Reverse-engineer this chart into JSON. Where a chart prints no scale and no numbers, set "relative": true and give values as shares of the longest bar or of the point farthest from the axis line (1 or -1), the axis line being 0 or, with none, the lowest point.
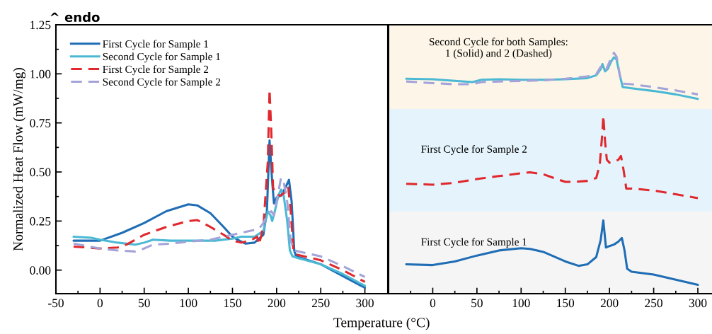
{
  "chart_data": [
    {
      "type": "line",
      "title": "^ endo",
      "xlabel": "Temperature (°C)",
      "ylabel": "Normalized Heat Flow (mW/mg)",
      "xlim": [
        -50,
        326
      ],
      "xticks": [
        -50,
        {
          "value": -25,
          "label": null
        },
        0,
        {
          "value": 25,
          "label": null
        },
        50,
        {
          "value": 75,
          "label": null
        },
        100,
        {
          "value": 125,
          "label": null
        },
        150,
        {
          "value": 175,
          "label": null
        },
        200,
        {
          "value": 225,
          "label": null
        },
        250,
        {
          "value": 275,
          "label": null
        },
        300
      ],
      "ylim": [
        -0.12,
        1.25
      ],
      "yticks": [
        {
          "value": 0,
          "label": "0.00"
        },
        {
          "value": 0.125,
          "label": null
        },
        {
          "value": 0.25,
          "label": "0.25"
        },
        {
          "value": 0.375,
          "label": null
        },
        {
          "value": 0.5,
          "label": "0.50"
        },
        {
          "value": 0.625,
          "label": null
        },
        {
          "value": 0.75,
          "label": "0.75"
        },
        {
          "value": 0.875,
          "label": null
        },
        {
          "value": 1,
          "label": "1.00"
        },
        {
          "value": 1.125,
          "label": null
        },
        {
          "value": 1.25,
          "label": "1.25"
        }
      ],
      "legend": "top left",
      "grid": false,
      "series": [
        {
          "name": "First Cycle for Sample 1",
          "color": "#1f6db5",
          "line_style": "solid",
          "x": [
            -30,
            0,
            25,
            50,
            75,
            100,
            110,
            125,
            140,
            150,
            160,
            165,
            175,
            185,
            189,
            192,
            195,
            197,
            200,
            205,
            210,
            214,
            217,
            220,
            222,
            250,
            275,
            300
          ],
          "values": [
            0.15,
            0.15,
            0.19,
            0.24,
            0.3,
            0.335,
            0.33,
            0.29,
            0.22,
            0.17,
            0.145,
            0.135,
            0.14,
            0.18,
            0.3,
            0.66,
            0.45,
            0.34,
            0.37,
            0.38,
            0.42,
            0.46,
            0.35,
            0.1,
            0.07,
            0.03,
            -0.03,
            -0.09
          ]
        },
        {
          "name": "Second Cycle for Sample 1",
          "color": "#4bb8d4",
          "line_style": "solid",
          "x": [
            -30,
            -10,
            0,
            20,
            40,
            50,
            60,
            80,
            100,
            130,
            150,
            160,
            175,
            185,
            190,
            193,
            195,
            198,
            202,
            205,
            208,
            212,
            215,
            218,
            225,
            250,
            275,
            300
          ],
          "values": [
            0.17,
            0.165,
            0.155,
            0.14,
            0.13,
            0.14,
            0.155,
            0.15,
            0.15,
            0.15,
            0.16,
            0.17,
            0.17,
            0.2,
            0.3,
            0.28,
            0.25,
            0.3,
            0.38,
            0.41,
            0.38,
            0.25,
            0.1,
            0.07,
            0.06,
            0.03,
            -0.02,
            -0.08
          ]
        },
        {
          "name": "First Cycle for Sample 2",
          "color": "#e0282e",
          "line_style": "dashed",
          "x": [
            -30,
            0,
            20,
            30,
            50,
            75,
            100,
            110,
            125,
            140,
            150,
            160,
            170,
            178,
            180,
            185,
            190,
            192,
            194,
            196,
            200,
            205,
            210,
            213,
            216,
            219,
            222,
            250,
            275,
            300
          ],
          "values": [
            0.12,
            0.11,
            0.115,
            0.13,
            0.18,
            0.22,
            0.25,
            0.255,
            0.22,
            0.18,
            0.15,
            0.14,
            0.15,
            0.17,
            0.13,
            0.22,
            0.55,
            0.92,
            0.7,
            0.42,
            0.38,
            0.38,
            0.4,
            0.43,
            0.3,
            0.1,
            0.08,
            0.05,
            0.0,
            -0.06
          ]
        },
        {
          "name": "Second Cycle for Sample 2",
          "color": "#a3a3d9",
          "line_style": "dashed",
          "x": [
            -30,
            0,
            20,
            40,
            50,
            60,
            80,
            100,
            125,
            150,
            170,
            180,
            185,
            190,
            194,
            197,
            200,
            205,
            208,
            212,
            216,
            220,
            250,
            275,
            300
          ],
          "values": [
            0.135,
            0.11,
            0.1,
            0.095,
            0.11,
            0.13,
            0.135,
            0.145,
            0.155,
            0.18,
            0.2,
            0.21,
            0.24,
            0.29,
            0.3,
            0.28,
            0.35,
            0.47,
            0.45,
            0.35,
            0.15,
            0.1,
            0.07,
            0.02,
            -0.035
          ]
        }
      ]
    },
    {
      "type": "line",
      "relative": true,
      "tick_labels": false,
      "xlim": [
        -50,
        316
      ],
      "annotations": [
        "Second Cycle for both Samples:\n1 (Solid) and 2 (Dashed)"
      ],
      "bands": [
        {
          "axis": "y",
          "from": 0,
          "to": 1.5,
          "color": "#fdf6e8"
        }
      ],
      "series": [
        {
          "color": "#4bb8d4",
          "line_style": "solid",
          "x": [
            -30,
            0,
            25,
            45,
            55,
            75,
            100,
            125,
            150,
            175,
            185,
            190,
            192,
            195,
            198,
            202,
            205,
            208,
            212,
            215,
            225,
            250,
            275,
            300
          ],
          "values": [
            0.54,
            0.53,
            0.5,
            0.48,
            0.52,
            0.53,
            0.52,
            0.52,
            0.53,
            0.55,
            0.6,
            0.71,
            0.8,
            0.67,
            0.71,
            0.85,
            0.92,
            0.88,
            0.58,
            0.39,
            0.37,
            0.32,
            0.26,
            0.18
          ]
        },
        {
          "color": "#a3a3d9",
          "line_style": "dashed",
          "x": [
            -30,
            0,
            25,
            45,
            55,
            75,
            100,
            125,
            150,
            175,
            185,
            190,
            193,
            196,
            200,
            205,
            208,
            212,
            215,
            225,
            250,
            275,
            300
          ],
          "values": [
            0.49,
            0.46,
            0.44,
            0.44,
            0.48,
            0.49,
            0.5,
            0.51,
            0.54,
            0.58,
            0.62,
            0.75,
            0.77,
            0.69,
            0.84,
            1.0,
            0.93,
            0.58,
            0.45,
            0.44,
            0.39,
            0.33,
            0.26
          ]
        }
      ]
    },
    {
      "type": "line",
      "relative": true,
      "tick_labels": false,
      "xlim": [
        -50,
        316
      ],
      "annotations": [
        "First Cycle for Sample 2"
      ],
      "bands": [
        {
          "axis": "y",
          "from": 0,
          "to": 1.07,
          "color": "#e5f4fc"
        }
      ],
      "series": [
        {
          "color": "#e0282e",
          "line_style": "dashed",
          "x": [
            -30,
            0,
            25,
            50,
            75,
            100,
            110,
            125,
            140,
            150,
            160,
            175,
            185,
            189,
            192,
            193,
            195,
            197,
            200,
            205,
            210,
            213,
            216,
            219,
            225,
            250,
            275,
            300
          ],
          "values": [
            0.29,
            0.28,
            0.3,
            0.34,
            0.37,
            0.4,
            0.41,
            0.39,
            0.34,
            0.31,
            0.31,
            0.32,
            0.35,
            0.49,
            0.83,
            1.0,
            0.73,
            0.54,
            0.51,
            0.52,
            0.54,
            0.58,
            0.43,
            0.24,
            0.24,
            0.22,
            0.18,
            0.14
          ]
        }
      ]
    },
    {
      "type": "line",
      "relative": true,
      "tick_labels": "x",
      "xlim": [
        -50,
        316
      ],
      "xticks": [
        {
          "value": -25,
          "label": null
        },
        0,
        {
          "value": 25,
          "label": null
        },
        50,
        {
          "value": 75,
          "label": null
        },
        100,
        {
          "value": 125,
          "label": null
        },
        150,
        {
          "value": 175,
          "label": null
        },
        200,
        {
          "value": 225,
          "label": null
        },
        250,
        {
          "value": 275,
          "label": null
        },
        300
      ],
      "annotations": [
        "First Cycle for Sample 1"
      ],
      "bands": [
        {
          "axis": "y",
          "from": 0,
          "to": 1.12,
          "color": "#f5f5f5"
        }
      ],
      "series": [
        {
          "color": "#1f6db5",
          "line_style": "solid",
          "x": [
            -30,
            0,
            25,
            50,
            75,
            100,
            110,
            125,
            150,
            165,
            175,
            185,
            190,
            193,
            196,
            200,
            205,
            210,
            214,
            217,
            220,
            225,
            250,
            275,
            300
          ],
          "values": [
            0.4,
            0.39,
            0.44,
            0.52,
            0.59,
            0.62,
            0.61,
            0.57,
            0.44,
            0.38,
            0.4,
            0.5,
            0.73,
            1.0,
            0.63,
            0.65,
            0.67,
            0.71,
            0.76,
            0.59,
            0.34,
            0.3,
            0.26,
            0.19,
            0.12
          ]
        }
      ]
    }
  ]
}
